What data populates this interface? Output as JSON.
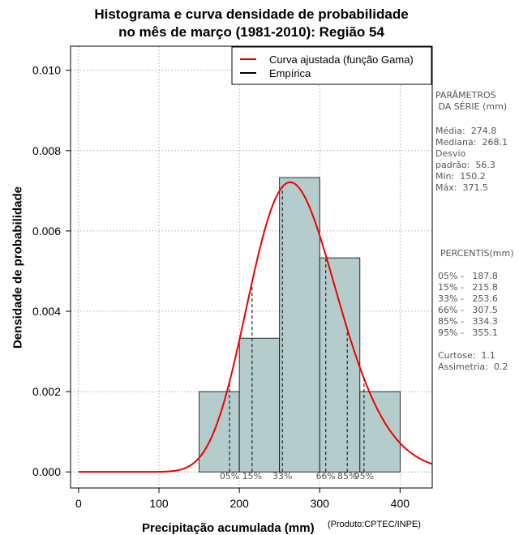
{
  "title_line1": "Histograma e curva densidade de probabilidade",
  "title_line2": "no mês de março (1981-2010): Região 54",
  "chart_data": {
    "type": "bar",
    "title": "Histograma e curva densidade de probabilidade no mês de março (1981-2010): Região 54",
    "xlabel": "Precipitação acumulada (mm)",
    "ylabel": "Densidade de probabilidade",
    "xlim": [
      -10,
      440
    ],
    "ylim": [
      -0.0004,
      0.0106
    ],
    "xticks": [
      0,
      100,
      200,
      300,
      400
    ],
    "xtick_labels": [
      "0",
      "100",
      "200",
      "300",
      "400"
    ],
    "yticks": [
      0.0,
      0.002,
      0.004,
      0.006,
      0.008,
      0.01
    ],
    "ytick_labels": [
      "0.000",
      "0.002",
      "0.004",
      "0.006",
      "0.008",
      "0.010"
    ],
    "grid": true,
    "bins": [
      {
        "start": 150,
        "end": 200,
        "density": 0.002
      },
      {
        "start": 200,
        "end": 250,
        "density": 0.00333
      },
      {
        "start": 250,
        "end": 300,
        "density": 0.00733
      },
      {
        "start": 300,
        "end": 350,
        "density": 0.00533
      },
      {
        "start": 350,
        "end": 400,
        "density": 0.002
      }
    ],
    "gamma_curve": {
      "name": "Curva ajustada (função Gama)",
      "mean": 274.8,
      "sd": 56.3
    },
    "percentile_lines": [
      {
        "label": "05%",
        "value": 187.8
      },
      {
        "label": "15%",
        "value": 215.8
      },
      {
        "label": "33%",
        "value": 253.6
      },
      {
        "label": "66%",
        "value": 307.5
      },
      {
        "label": "85%",
        "value": 334.3
      },
      {
        "label": "95%",
        "value": 355.1
      }
    ],
    "legend": {
      "position": "top-right",
      "entries": [
        {
          "label": "Curva ajustada (função Gama)",
          "color": "#ee0000"
        },
        {
          "label": "Empírica",
          "color": "#000000"
        }
      ]
    },
    "colors": {
      "bar_fill": "#b4cccc",
      "curve": "#ee0000",
      "grid": "#b0b0b0"
    }
  },
  "side_params": {
    "heading": "PARÂMETROS\n DA SÉRIE (mm)",
    "lines": "Média:  274.8\nMediana:  268.1\nDesvio\npadrão:  56.3\nMín:  150.2\nMáx:  371.5"
  },
  "side_percentis": {
    "heading": "PERCENTIS(mm)",
    "lines": "05% -   187.8\n15% -   215.8\n33% -   253.6\n66% -   307.5\n85% -   334.3\n95% -   355.1\n\nCurtose:  1.1\nAssimetria:  0.2"
  },
  "credit": "(Produto:CPTEC/INPE)"
}
